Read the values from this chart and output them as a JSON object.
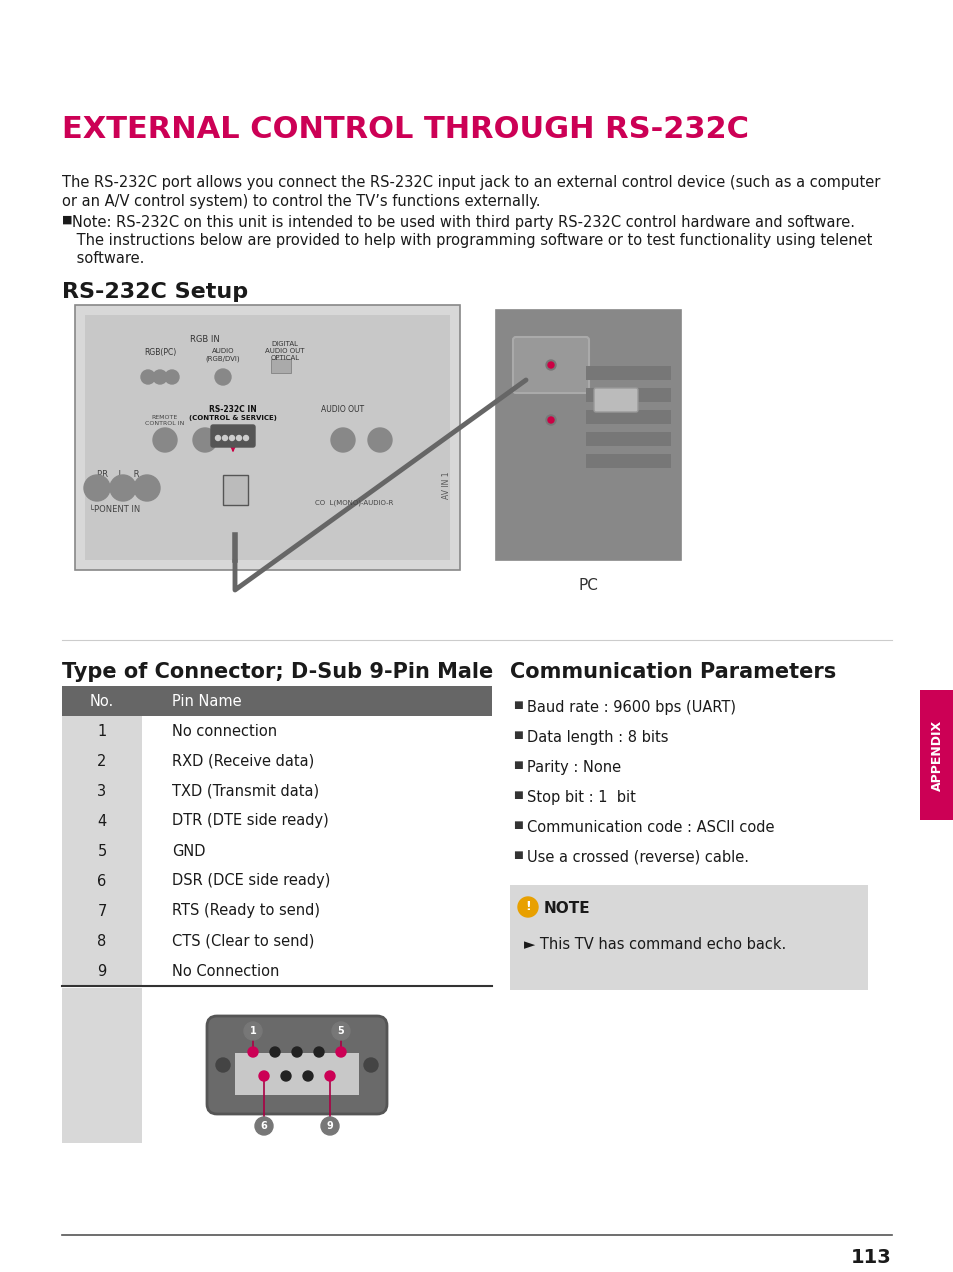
{
  "title": "EXTERNAL CONTROL THROUGH RS-232C",
  "title_color": "#cc0055",
  "bg_color": "#ffffff",
  "body_line1": "The RS-232C port allows you connect the RS-232C input jack to an external control device (such as a computer",
  "body_line2": "or an A/V control system) to control the TV’s functions externally.",
  "note_bullet": "■",
  "note_line1": "Note: RS-232C on this unit is intended to be used with third party RS-232C control hardware and software.",
  "note_line2": " The instructions below are provided to help with programming software or to test functionality using telenet",
  "note_line3": " software.",
  "setup_heading": "RS-232C Setup",
  "connector_heading": "Type of Connector; D-Sub 9-Pin Male",
  "comm_heading": "Communication Parameters",
  "table_header_bg": "#666666",
  "table_header_color": "#ffffff",
  "table_alt_bg": "#e0e0e0",
  "table_no_col_bg": "#d8d8d8",
  "table_header": [
    "No.",
    "Pin Name"
  ],
  "table_rows": [
    [
      "1",
      "No connection"
    ],
    [
      "2",
      "RXD (Receive data)"
    ],
    [
      "3",
      "TXD (Transmit data)"
    ],
    [
      "4",
      "DTR (DTE side ready)"
    ],
    [
      "5",
      "GND"
    ],
    [
      "6",
      "DSR (DCE side ready)"
    ],
    [
      "7",
      "RTS (Ready to send)"
    ],
    [
      "8",
      "CTS (Clear to send)"
    ],
    [
      "9",
      "No Connection"
    ]
  ],
  "comm_params": [
    "Baud rate : 9600 bps (UART)",
    "Data length : 8 bits",
    "Parity : None",
    "Stop bit : 1  bit",
    "Communication code : ASCII code",
    "Use a crossed (reverse) cable."
  ],
  "note_box_text": "NOTE",
  "note_box_body": "► This TV has command echo back.",
  "note_box_bg": "#d8d8d8",
  "appendix_label": "APPENDIX",
  "page_number": "113",
  "sidebar_color": "#cc0055",
  "pc_label": "PC",
  "conn_bg": "#e0e0e0",
  "dsub_body_color": "#6a6a6a",
  "dsub_inner_color": "#c8c8c8",
  "pin_dot_color": "#cc0055",
  "pin_black_color": "#222222",
  "callout_color": "#aa0044",
  "label_circle_color": "#777777"
}
